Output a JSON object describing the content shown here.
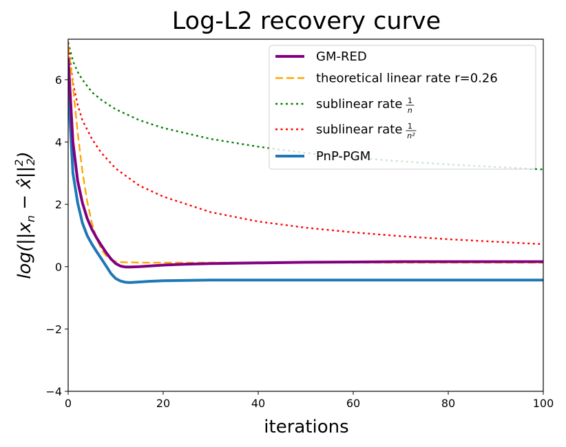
{
  "chart_data": {
    "type": "line",
    "title": "Log-L2 recovery curve",
    "xlabel": "iterations",
    "ylabel": "log(||x_n − x̂||²₂)",
    "xlim": [
      0,
      100
    ],
    "ylim": [
      -4,
      7.3
    ],
    "x_ticks": [
      "0",
      "20",
      "40",
      "60",
      "80",
      "100"
    ],
    "y_ticks": [
      "−4",
      "−2",
      "0",
      "2",
      "4",
      "6"
    ],
    "grid": false,
    "legend_position": "top-right",
    "series": [
      {
        "name": "GM-RED",
        "color": "#800080",
        "style": "solid",
        "x": [
          0,
          1,
          2,
          3,
          4,
          5,
          6,
          7,
          8,
          9,
          10,
          11,
          12,
          13,
          15,
          20,
          25,
          30,
          40,
          50,
          60,
          70,
          80,
          90,
          100
        ],
        "y": [
          6.7,
          4.0,
          2.75,
          2.05,
          1.55,
          1.2,
          0.92,
          0.68,
          0.45,
          0.25,
          0.1,
          0.02,
          -0.01,
          -0.01,
          0.0,
          0.05,
          0.08,
          0.1,
          0.12,
          0.14,
          0.15,
          0.16,
          0.16,
          0.16,
          0.16
        ]
      },
      {
        "name": "theoretical linear rate r=0.26",
        "color": "#ffa500",
        "style": "dashed",
        "x": [
          0,
          1,
          2,
          3,
          4,
          5,
          6,
          7,
          8,
          9,
          10,
          11,
          12,
          13,
          15,
          20,
          25,
          30,
          40,
          50,
          60,
          70,
          80,
          90,
          100
        ],
        "y": [
          7.1,
          5.8,
          4.3,
          3.05,
          2.1,
          1.4,
          0.9,
          0.55,
          0.35,
          0.22,
          0.17,
          0.15,
          0.14,
          0.14,
          0.13,
          0.13,
          0.13,
          0.13,
          0.13,
          0.13,
          0.13,
          0.13,
          0.13,
          0.13,
          0.13
        ]
      },
      {
        "name": "sublinear rate",
        "label_fraction": [
          "1",
          "n"
        ],
        "color": "#008000",
        "style": "dotted",
        "x": [
          0,
          1,
          2,
          3,
          5,
          7,
          10,
          15,
          20,
          30,
          40,
          50,
          60,
          70,
          80,
          90,
          100
        ],
        "y": [
          7.2,
          6.6,
          6.25,
          6.0,
          5.6,
          5.35,
          5.05,
          4.7,
          4.45,
          4.1,
          3.85,
          3.65,
          3.5,
          3.38,
          3.28,
          3.2,
          3.12
        ]
      },
      {
        "name": "sublinear rate",
        "label_fraction": [
          "1",
          "n²"
        ],
        "color": "#ff0000",
        "style": "dotted",
        "x": [
          0,
          1,
          2,
          3,
          5,
          7,
          10,
          15,
          20,
          30,
          40,
          50,
          60,
          70,
          80,
          90,
          100
        ],
        "y": [
          7.2,
          5.9,
          5.2,
          4.7,
          4.1,
          3.65,
          3.15,
          2.6,
          2.25,
          1.75,
          1.45,
          1.25,
          1.1,
          0.98,
          0.88,
          0.8,
          0.72
        ]
      },
      {
        "name": "PnP-PGM",
        "color": "#1f77b4",
        "style": "solid",
        "x": [
          0,
          1,
          2,
          3,
          4,
          5,
          6,
          7,
          8,
          9,
          10,
          11,
          12,
          13,
          15,
          17,
          20,
          25,
          30,
          40,
          50,
          60,
          70,
          80,
          90,
          100
        ],
        "y": [
          5.8,
          3.0,
          2.05,
          1.4,
          1.0,
          0.72,
          0.48,
          0.25,
          0.02,
          -0.22,
          -0.38,
          -0.46,
          -0.5,
          -0.51,
          -0.49,
          -0.47,
          -0.45,
          -0.44,
          -0.43,
          -0.43,
          -0.43,
          -0.43,
          -0.43,
          -0.43,
          -0.43,
          -0.43
        ]
      }
    ]
  }
}
